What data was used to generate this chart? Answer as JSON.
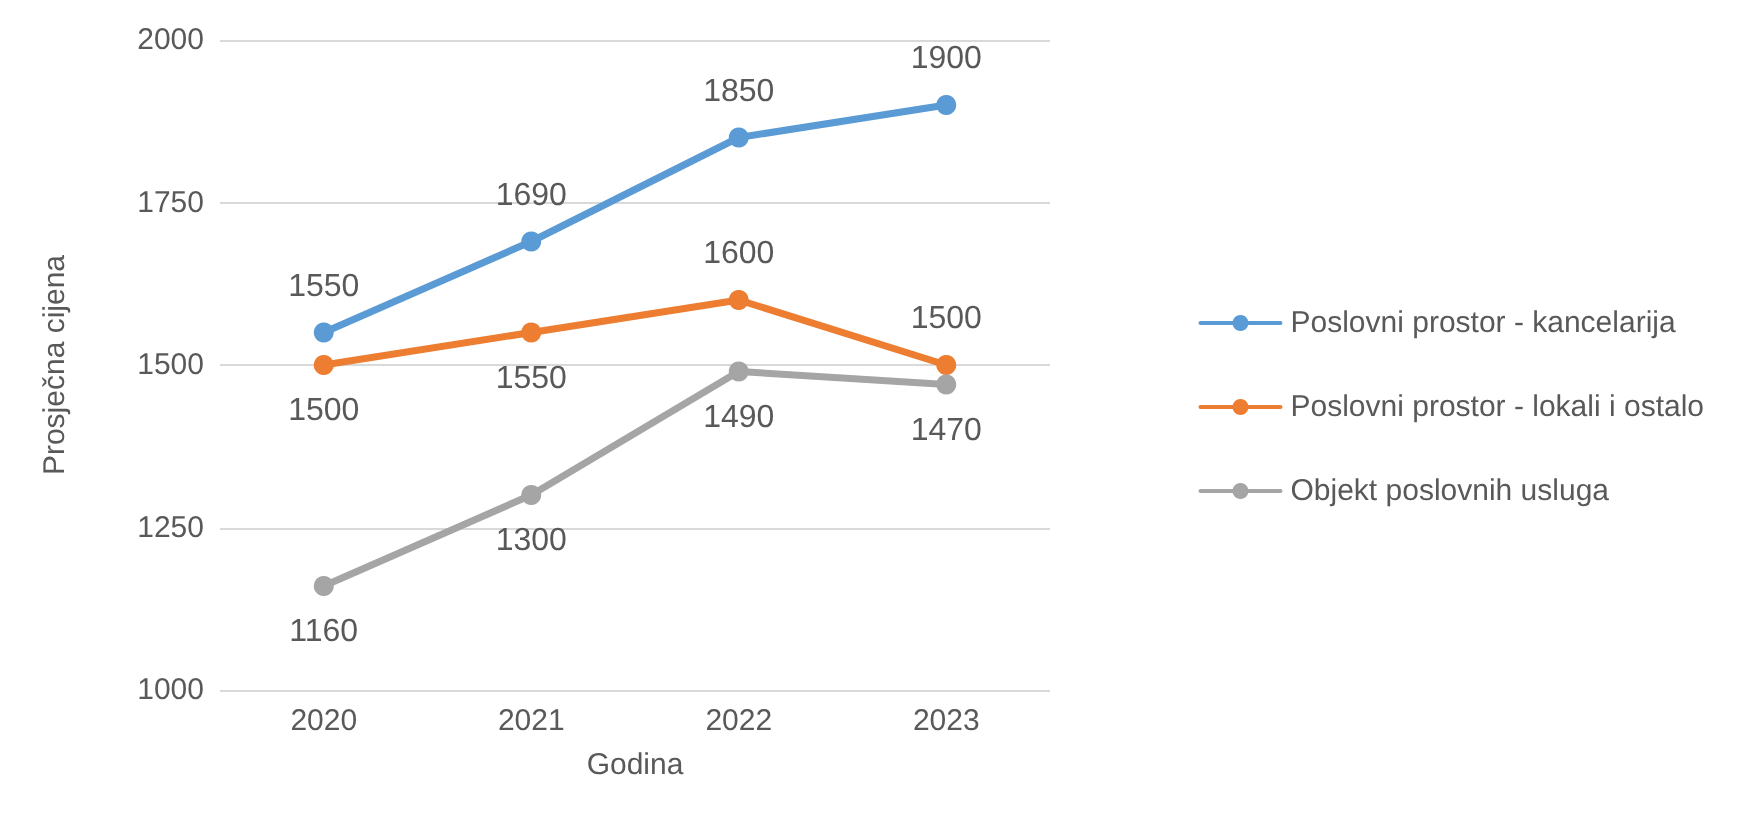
{
  "chart_data": {
    "type": "line",
    "xlabel": "Godina",
    "ylabel": "Prosječna cijena",
    "categories": [
      "2020",
      "2021",
      "2022",
      "2023"
    ],
    "series": [
      {
        "name": "Poslovni prostor - kancelarija",
        "color": "#5b9bd5",
        "values": [
          1550,
          1690,
          1850,
          1900
        ]
      },
      {
        "name": "Poslovni prostor - lokali i ostalo",
        "color": "#ed7d31",
        "values": [
          1500,
          1550,
          1600,
          1500
        ]
      },
      {
        "name": "Objekt poslovnih usluga",
        "color": "#a5a5a5",
        "values": [
          1160,
          1300,
          1490,
          1470
        ]
      }
    ],
    "ylim": [
      1000,
      2000
    ],
    "yticks": [
      1000,
      1250,
      1500,
      1750,
      2000
    ],
    "grid": "y",
    "legend": "right",
    "marker": "circle",
    "line_style": "solid",
    "data_labels": true
  }
}
